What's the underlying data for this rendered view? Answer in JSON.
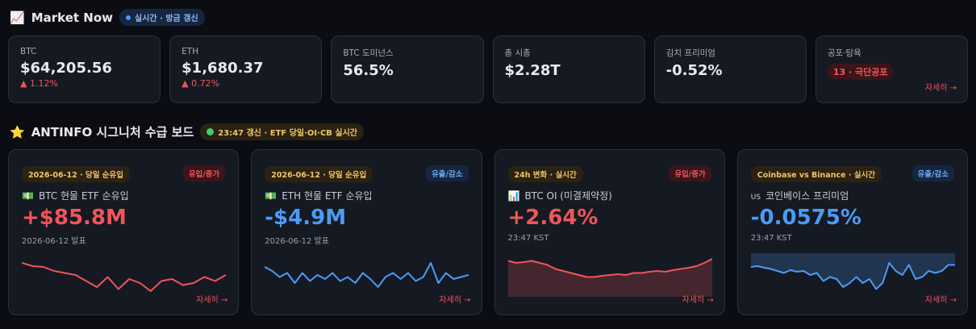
{
  "header": {
    "title": "Market Now",
    "badge": "실시간 · 방금 갱신"
  },
  "stats": [
    {
      "label": "BTC",
      "value": "$64,205.56",
      "change": "▲ 1.12%"
    },
    {
      "label": "ETH",
      "value": "$1,680.37",
      "change": "▲ 0.72%"
    },
    {
      "label": "BTC 도미넌스",
      "value": "56.5%"
    },
    {
      "label": "총 시총",
      "value": "$2.28T"
    },
    {
      "label": "김치 프리미엄",
      "value": "-0.52%"
    },
    {
      "label": "공포·탐욕",
      "badge": "13 · 극단공포",
      "link": "자세히 →"
    }
  ],
  "section": {
    "title": "ANTINFO 시그니처 수급 보드",
    "badge": "23:47 갱신 · ETF 당일·OI·CB 실시간"
  },
  "cards": [
    {
      "tag": "2026-06-12 · 당일 순유입",
      "pill": "유입/증가",
      "direction": "up",
      "icon": "💵",
      "title": "BTC 현물 ETF 순유입",
      "value": "+$85.8M",
      "sub": "2026-06-12 발표",
      "link": "자세히 →",
      "color": "#f0555a",
      "fill": "none",
      "spark": {
        "values": [
          80,
          72,
          70,
          60,
          55,
          50,
          35,
          20,
          45,
          15,
          40,
          30,
          10,
          35,
          40,
          25,
          30,
          45,
          35,
          50
        ],
        "ylim": [
          0,
          100
        ]
      }
    },
    {
      "tag": "2026-06-12 · 당일 순유입",
      "pill": "유출/감소",
      "direction": "down",
      "icon": "💵",
      "title": "ETH 현물 ETF 순유입",
      "value": "-$4.9M",
      "sub": "2026-06-12 발표",
      "link": "자세히 →",
      "color": "#4c9bf5",
      "fill": "none",
      "spark": {
        "values": [
          70,
          60,
          45,
          55,
          30,
          55,
          35,
          50,
          40,
          55,
          35,
          45,
          30,
          55,
          40,
          20,
          45,
          55,
          40,
          55,
          35,
          45,
          80,
          30,
          55,
          40,
          45,
          50
        ],
        "ylim": [
          0,
          100
        ]
      }
    },
    {
      "tag": "24h 변화 · 실시간",
      "pill": "유입/증가",
      "direction": "up",
      "icon": "📊",
      "title": "BTC OI (미결제약정)",
      "value": "+2.64%",
      "sub": "23:47 KST",
      "link": "자세히 →",
      "color": "#f0555a",
      "fill": "bottom",
      "spark": {
        "values": [
          85,
          80,
          82,
          85,
          80,
          75,
          65,
          60,
          55,
          50,
          45,
          45,
          48,
          50,
          52,
          50,
          55,
          55,
          58,
          60,
          58,
          62,
          65,
          68,
          72,
          80,
          90
        ],
        "ylim": [
          0,
          100
        ]
      }
    },
    {
      "tag": "Coinbase vs Binance · 실시간",
      "pill": "유출/감소",
      "direction": "down",
      "icon": "US",
      "title": "코인베이스 프리미엄",
      "value": "-0.0575%",
      "sub": "23:47 KST",
      "link": "자세히 →",
      "color": "#4c9bf5",
      "fill": "top",
      "spark": {
        "values": [
          70,
          72,
          68,
          65,
          60,
          55,
          62,
          58,
          60,
          50,
          55,
          35,
          45,
          40,
          20,
          30,
          45,
          30,
          40,
          15,
          30,
          80,
          60,
          50,
          75,
          40,
          45,
          60,
          55,
          60,
          75,
          75
        ],
        "ylim": [
          0,
          100
        ]
      }
    }
  ]
}
